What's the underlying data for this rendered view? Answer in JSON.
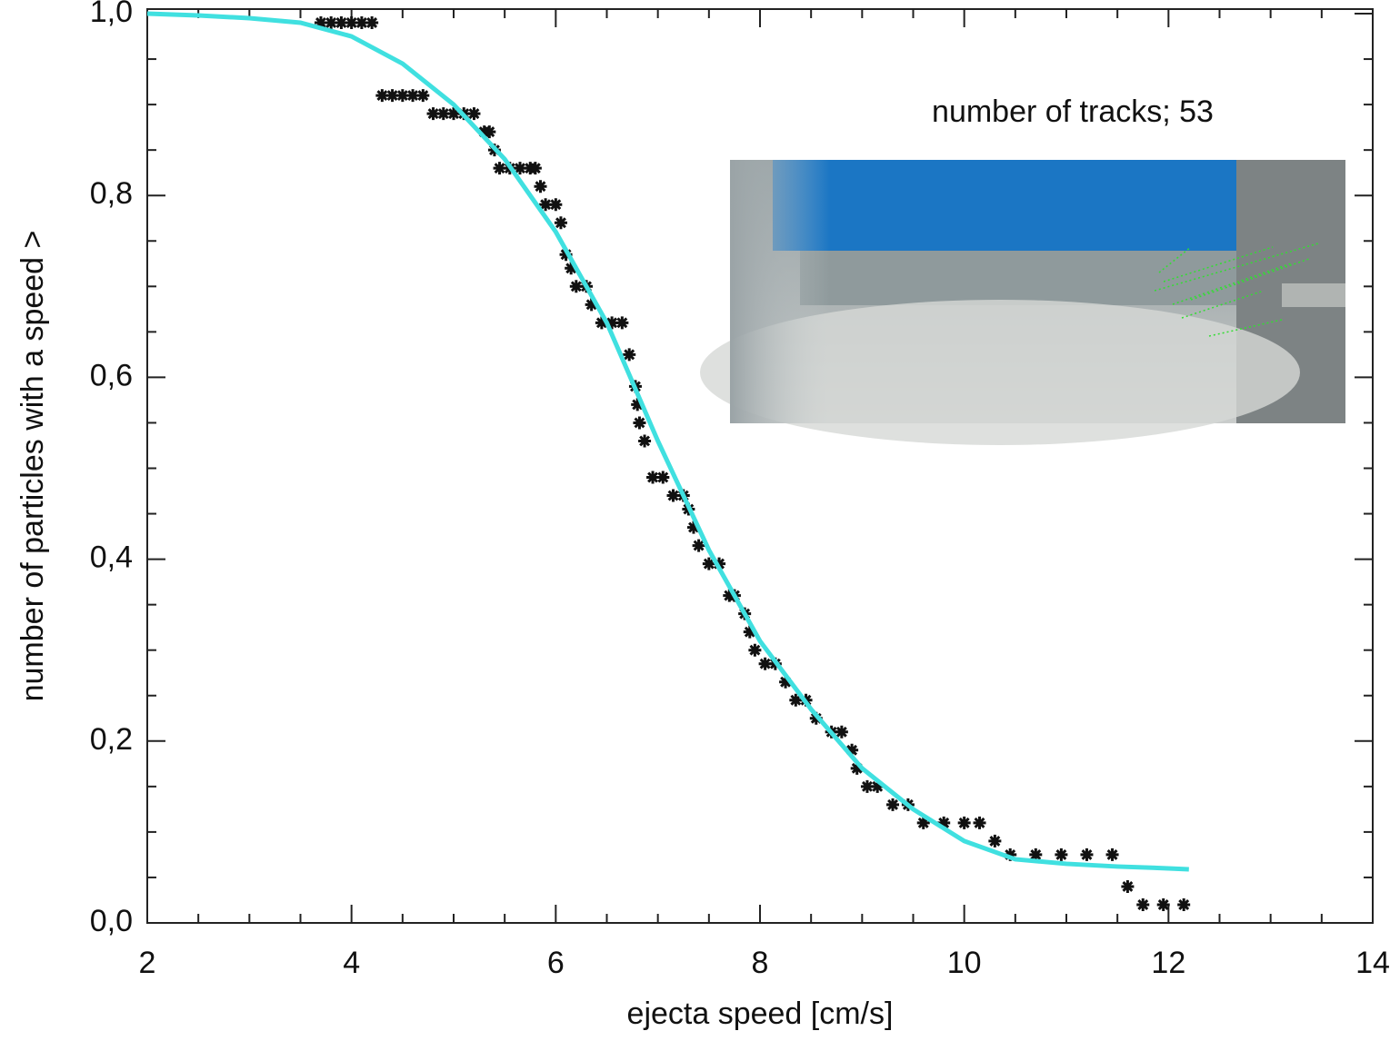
{
  "chart_data": {
    "type": "scatter",
    "xlabel": "ejecta speed [cm/s]",
    "ylabel": "number of particles with a speed >",
    "annotation": "number of tracks; 53",
    "xlim": [
      2,
      14
    ],
    "ylim": [
      0,
      1.005
    ],
    "xticks": [
      2,
      4,
      6,
      8,
      10,
      12,
      14
    ],
    "yticks": [
      {
        "value": 0,
        "label": "0,0"
      },
      {
        "value": 0.2,
        "label": "0,2"
      },
      {
        "value": 0.4,
        "label": "0,4"
      },
      {
        "value": 0.6,
        "label": "0,6"
      },
      {
        "value": 0.8,
        "label": "0,8"
      },
      {
        "value": 1.0,
        "label": "1,0"
      }
    ],
    "xminorticks": [
      2.5,
      3,
      3.5,
      4.5,
      5,
      5.5,
      6.5,
      7,
      7.5,
      8.5,
      9,
      9.5,
      10.5,
      11,
      11.5,
      12.5,
      13,
      13.5
    ],
    "yminorticks": [
      0.05,
      0.1,
      0.15,
      0.25,
      0.3,
      0.35,
      0.45,
      0.5,
      0.55,
      0.65,
      0.7,
      0.75,
      0.85,
      0.9,
      0.95
    ],
    "series": [
      {
        "style": "asterisk",
        "color": "#111111",
        "x": [
          3.7,
          3.8,
          3.9,
          4.0,
          4.1,
          4.2,
          4.3,
          4.4,
          4.5,
          4.6,
          4.7,
          4.8,
          4.9,
          5.0,
          5.1,
          5.2,
          5.3,
          5.35,
          5.4,
          5.45,
          5.55,
          5.65,
          5.75,
          5.8,
          5.85,
          5.9,
          6.0,
          6.05,
          6.1,
          6.15,
          6.2,
          6.3,
          6.35,
          6.45,
          6.55,
          6.65,
          6.72,
          6.78,
          6.8,
          6.82,
          6.87,
          6.95,
          7.05,
          7.15,
          7.25,
          7.3,
          7.35,
          7.4,
          7.5,
          7.6,
          7.7,
          7.75,
          7.85,
          7.9,
          7.95,
          8.05,
          8.15,
          8.25,
          8.35,
          8.45,
          8.55,
          8.7,
          8.8,
          8.9,
          8.95,
          9.05,
          9.15,
          9.3,
          9.45,
          9.6,
          9.8,
          10.0,
          10.15,
          10.3,
          10.45,
          10.7,
          10.95,
          11.2,
          11.45,
          11.6,
          11.75,
          11.95,
          12.15
        ],
        "values": [
          0.99,
          0.99,
          0.99,
          0.99,
          0.99,
          0.99,
          0.91,
          0.91,
          0.91,
          0.91,
          0.91,
          0.89,
          0.89,
          0.89,
          0.89,
          0.89,
          0.87,
          0.87,
          0.85,
          0.83,
          0.83,
          0.83,
          0.83,
          0.83,
          0.81,
          0.79,
          0.79,
          0.77,
          0.735,
          0.72,
          0.7,
          0.7,
          0.68,
          0.66,
          0.66,
          0.66,
          0.625,
          0.59,
          0.57,
          0.55,
          0.53,
          0.49,
          0.49,
          0.47,
          0.47,
          0.455,
          0.435,
          0.415,
          0.395,
          0.395,
          0.36,
          0.36,
          0.34,
          0.32,
          0.3,
          0.285,
          0.285,
          0.265,
          0.245,
          0.245,
          0.225,
          0.21,
          0.21,
          0.19,
          0.17,
          0.15,
          0.15,
          0.13,
          0.13,
          0.11,
          0.11,
          0.11,
          0.11,
          0.09,
          0.075,
          0.075,
          0.075,
          0.075,
          0.075,
          0.04,
          0.02,
          0.02,
          0.02
        ]
      },
      {
        "style": "line",
        "color": "#40e0e0",
        "x": [
          2,
          2.5,
          3,
          3.5,
          4,
          4.5,
          5,
          5.5,
          6,
          6.5,
          7,
          7.5,
          8,
          8.5,
          9,
          9.5,
          10,
          10.5,
          11,
          11.5,
          12,
          12.2
        ],
        "values": [
          1.0,
          0.998,
          0.995,
          0.99,
          0.975,
          0.945,
          0.9,
          0.84,
          0.76,
          0.66,
          0.53,
          0.41,
          0.31,
          0.235,
          0.17,
          0.125,
          0.09,
          0.07,
          0.065,
          0.062,
          0.06,
          0.059
        ]
      }
    ]
  }
}
